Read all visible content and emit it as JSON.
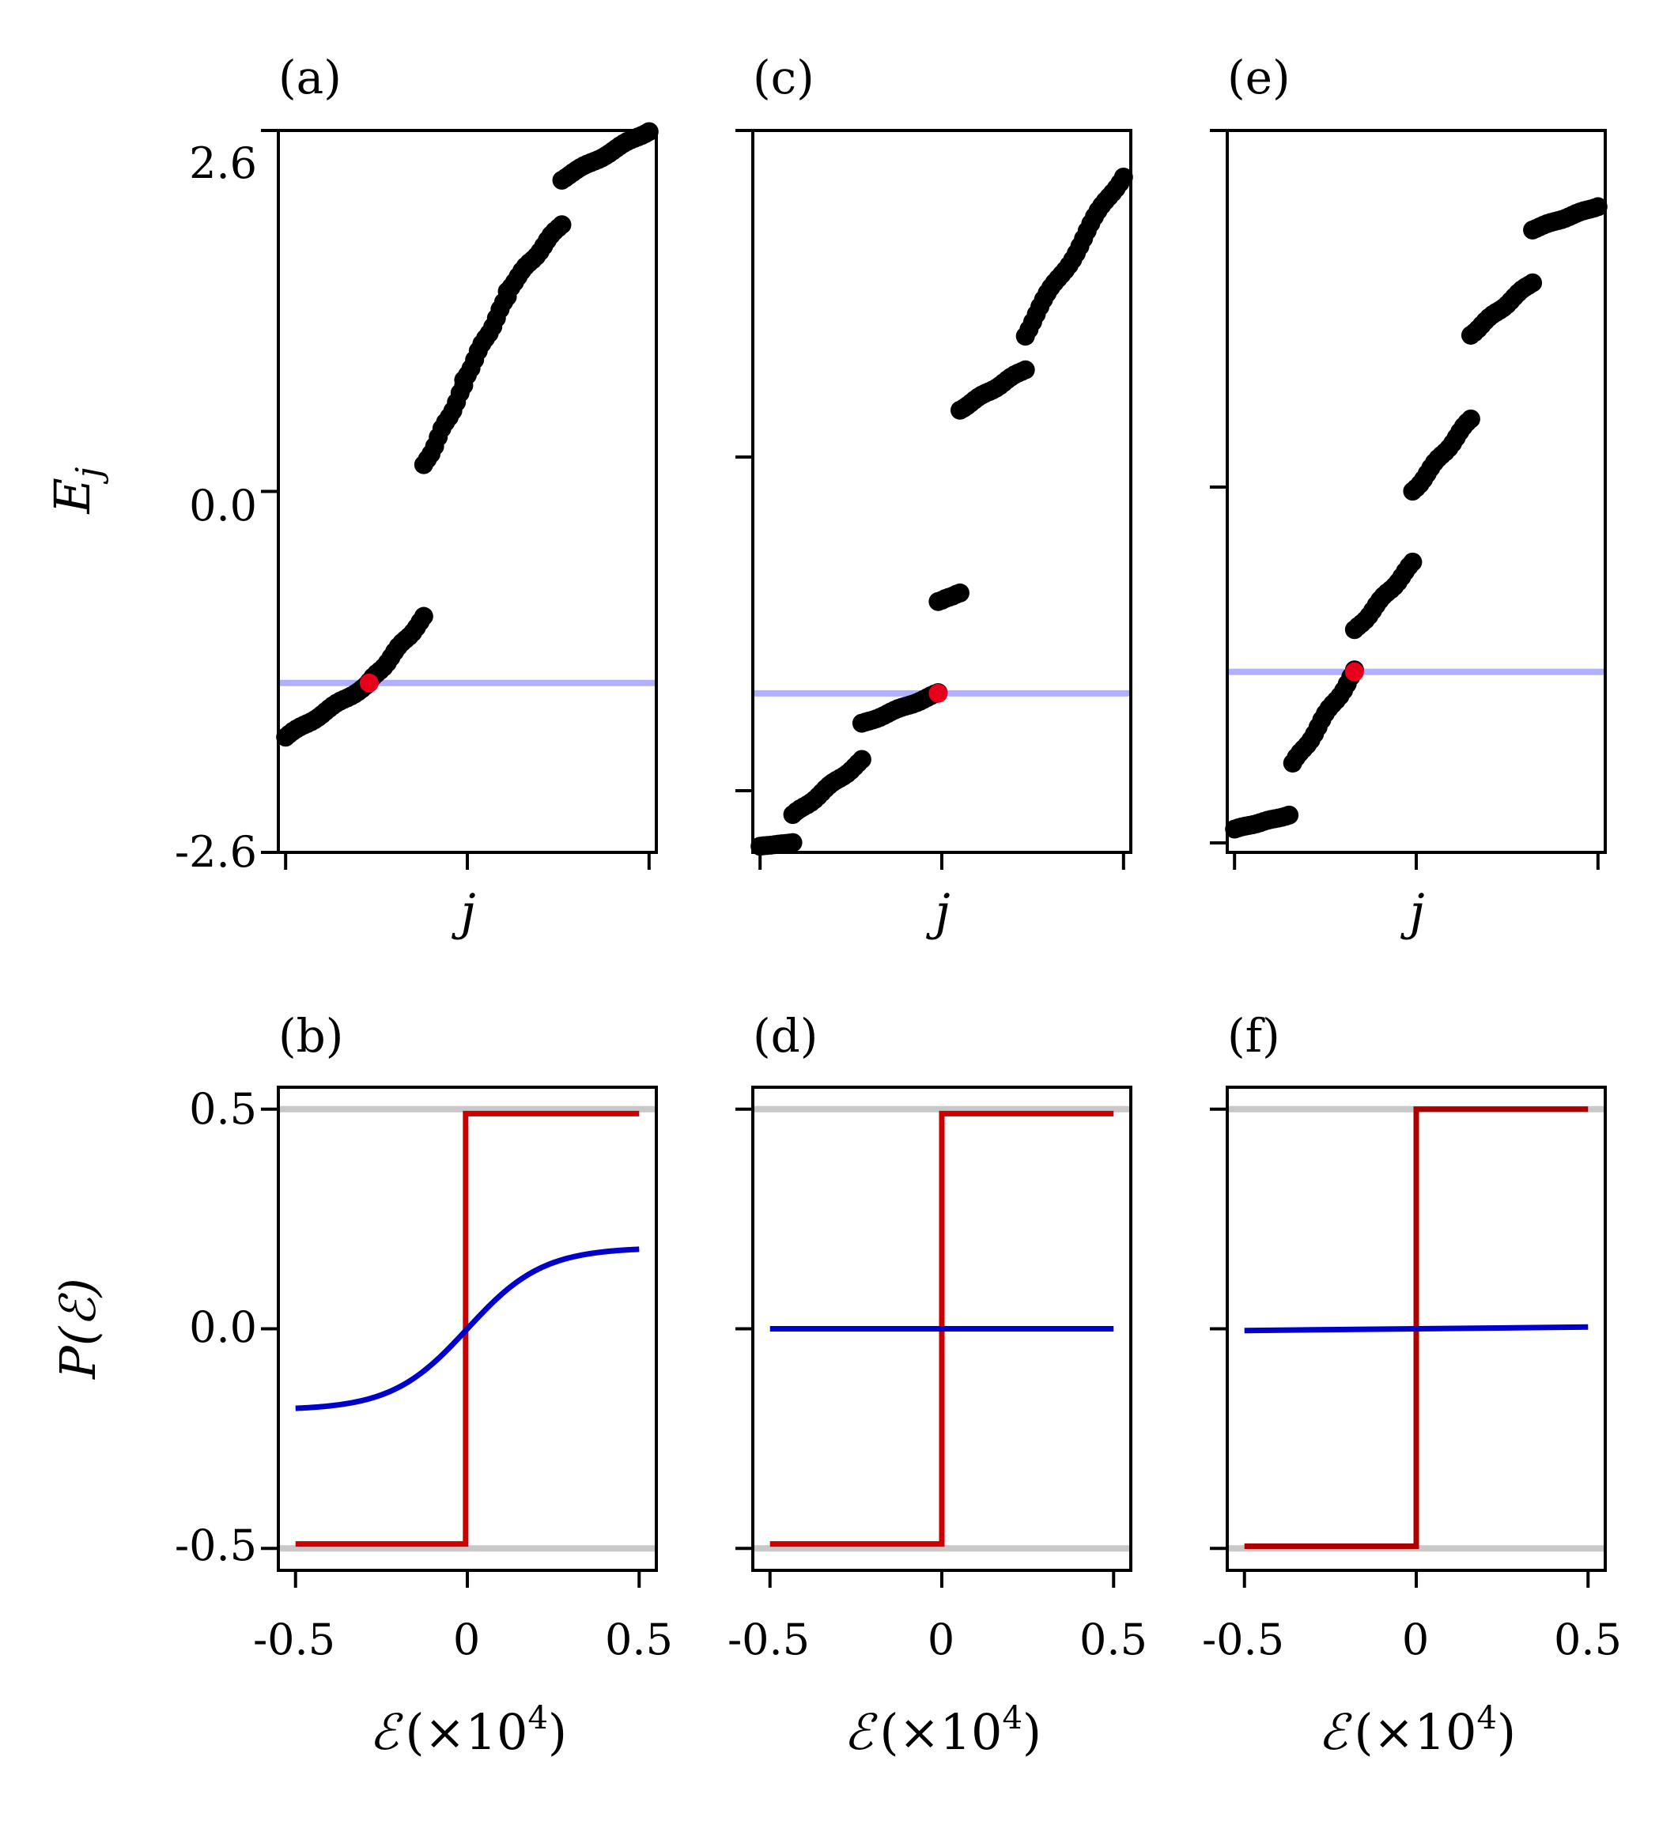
{
  "panels": [
    {
      "id": "a",
      "label": "(a)",
      "xlabel": "j",
      "ylabel": "E",
      "ylabel_sub": "j",
      "y_ticks": [
        2.6,
        0.0,
        -2.6
      ],
      "y_tick_labels": [
        "2.6",
        "0.0",
        "-2.6"
      ],
      "x_tick_count": 3
    },
    {
      "id": "c",
      "label": "(c)",
      "xlabel": "j",
      "y_tick_count": 3,
      "x_tick_count": 3
    },
    {
      "id": "e",
      "label": "(e)",
      "xlabel": "j",
      "y_tick_count": 3,
      "x_tick_count": 3
    },
    {
      "id": "b",
      "label": "(b)",
      "xlabel_script": "ℰ",
      "xlabel_unit": "(×10",
      "xlabel_exp": "4",
      "xlabel_close": ")",
      "ylabel": "P(ℰ)",
      "y_tick_labels": [
        "0.5",
        "0.0",
        "-0.5"
      ],
      "x_tick_labels": [
        "-0.5",
        "0",
        "0.5"
      ]
    },
    {
      "id": "d",
      "label": "(d)",
      "xlabel_script": "ℰ",
      "xlabel_unit": "(×10",
      "xlabel_exp": "4",
      "xlabel_close": ")",
      "x_tick_labels": [
        "-0.5",
        "0",
        "0.5"
      ]
    },
    {
      "id": "f",
      "label": "(f)",
      "xlabel_script": "ℰ",
      "xlabel_unit": "(×10",
      "xlabel_exp": "4",
      "xlabel_close": ")",
      "x_tick_labels": [
        "-0.5",
        "0",
        "0.5"
      ]
    }
  ],
  "chart_data": [
    {
      "panel": "a",
      "type": "scatter",
      "ylim": [
        -2.6,
        2.6
      ],
      "xlim": [
        -2,
        102
      ],
      "marker_color": "#000000",
      "highlight_color": "#e8001a",
      "fermi_line_color": "#b0b0ff",
      "fermi_level": -1.38,
      "highlight_point": {
        "x": 23,
        "y": -1.38
      },
      "bands": [
        {
          "x0": 0,
          "x1": 22,
          "y0": -1.77,
          "y1": -1.4
        },
        {
          "x0": 23,
          "x1": 38,
          "y0": -1.38,
          "y1": -0.91
        },
        {
          "x0": 38,
          "x1": 49,
          "y0": 0.18,
          "y1": 0.75
        },
        {
          "x0": 49,
          "x1": 61,
          "y0": 0.8,
          "y1": 1.4
        },
        {
          "x0": 61,
          "x1": 76,
          "y0": 1.45,
          "y1": 1.93
        },
        {
          "x0": 76,
          "x1": 100,
          "y0": 2.25,
          "y1": 2.6
        }
      ]
    },
    {
      "panel": "c",
      "type": "scatter",
      "ylim": [
        -2.95,
        2.95
      ],
      "xlim": [
        -2,
        102
      ],
      "marker_color": "#000000",
      "highlight_color": "#e8001a",
      "fermi_line_color": "#b0b0ff",
      "fermi_level": -1.65,
      "highlight_point": {
        "x": 49,
        "y": -1.65
      },
      "bands": [
        {
          "x0": 0,
          "x1": 9,
          "y0": -2.9,
          "y1": -2.87
        },
        {
          "x0": 9,
          "x1": 28,
          "y0": -2.65,
          "y1": -2.2
        },
        {
          "x0": 28,
          "x1": 49,
          "y0": -1.9,
          "y1": -1.65
        },
        {
          "x0": 49,
          "x1": 55,
          "y0": -0.9,
          "y1": -0.83
        },
        {
          "x0": 55,
          "x1": 73,
          "y0": 0.67,
          "y1": 1.0
        },
        {
          "x0": 73,
          "x1": 100,
          "y0": 1.3,
          "y1": 2.6
        }
      ]
    },
    {
      "panel": "e",
      "type": "scatter",
      "ylim": [
        -3.1,
        3.1
      ],
      "xlim": [
        -2,
        102
      ],
      "marker_color": "#000000",
      "highlight_color": "#e8001a",
      "fermi_line_color": "#b0b0ff",
      "fermi_level": -1.55,
      "highlight_point": {
        "x": 33,
        "y": -1.55
      },
      "bands": [
        {
          "x0": 0,
          "x1": 15,
          "y0": -2.9,
          "y1": -2.78
        },
        {
          "x0": 16,
          "x1": 33,
          "y0": -2.35,
          "y1": -1.55
        },
        {
          "x0": 33,
          "x1": 49,
          "y0": -1.2,
          "y1": -0.62
        },
        {
          "x0": 49,
          "x1": 65,
          "y0": 0.0,
          "y1": 0.62
        },
        {
          "x0": 65,
          "x1": 82,
          "y0": 1.35,
          "y1": 1.8
        },
        {
          "x0": 82,
          "x1": 100,
          "y0": 2.25,
          "y1": 2.45
        }
      ]
    },
    {
      "panel": "b",
      "type": "line",
      "xlim": [
        -0.55,
        0.55
      ],
      "ylim": [
        -0.55,
        0.55
      ],
      "gray_lines": [
        0.5,
        -0.5
      ],
      "series": [
        {
          "color": "#cc0000",
          "x": [
            -0.5,
            -0.005,
            -0.005,
            0.5
          ],
          "y": [
            -0.49,
            -0.49,
            0.49,
            0.49
          ]
        },
        {
          "color": "#0000cc",
          "function": "tanh",
          "amplitude": 0.185,
          "scale": 0.22,
          "x_range": [
            -0.5,
            0.5
          ]
        }
      ]
    },
    {
      "panel": "d",
      "type": "line",
      "xlim": [
        -0.55,
        0.55
      ],
      "ylim": [
        -0.55,
        0.55
      ],
      "gray_lines": [
        0.5,
        -0.5
      ],
      "series": [
        {
          "color": "#cc0000",
          "x": [
            -0.5,
            0.0,
            0.0,
            0.5
          ],
          "y": [
            -0.49,
            -0.49,
            0.49,
            0.49
          ]
        },
        {
          "color": "#0000cc",
          "x": [
            -0.5,
            0.5
          ],
          "y": [
            0.0,
            0.0
          ]
        }
      ]
    },
    {
      "panel": "f",
      "type": "line",
      "xlim": [
        -0.55,
        0.55
      ],
      "ylim": [
        -0.55,
        0.55
      ],
      "gray_lines": [
        0.5,
        -0.5
      ],
      "series": [
        {
          "color": "#aa0000",
          "x": [
            -0.5,
            0.0,
            0.0,
            0.5
          ],
          "y": [
            -0.495,
            -0.495,
            0.5,
            0.5
          ]
        },
        {
          "color": "#0000cc",
          "x": [
            -0.5,
            0.5
          ],
          "y": [
            -0.004,
            0.004
          ]
        }
      ]
    }
  ]
}
